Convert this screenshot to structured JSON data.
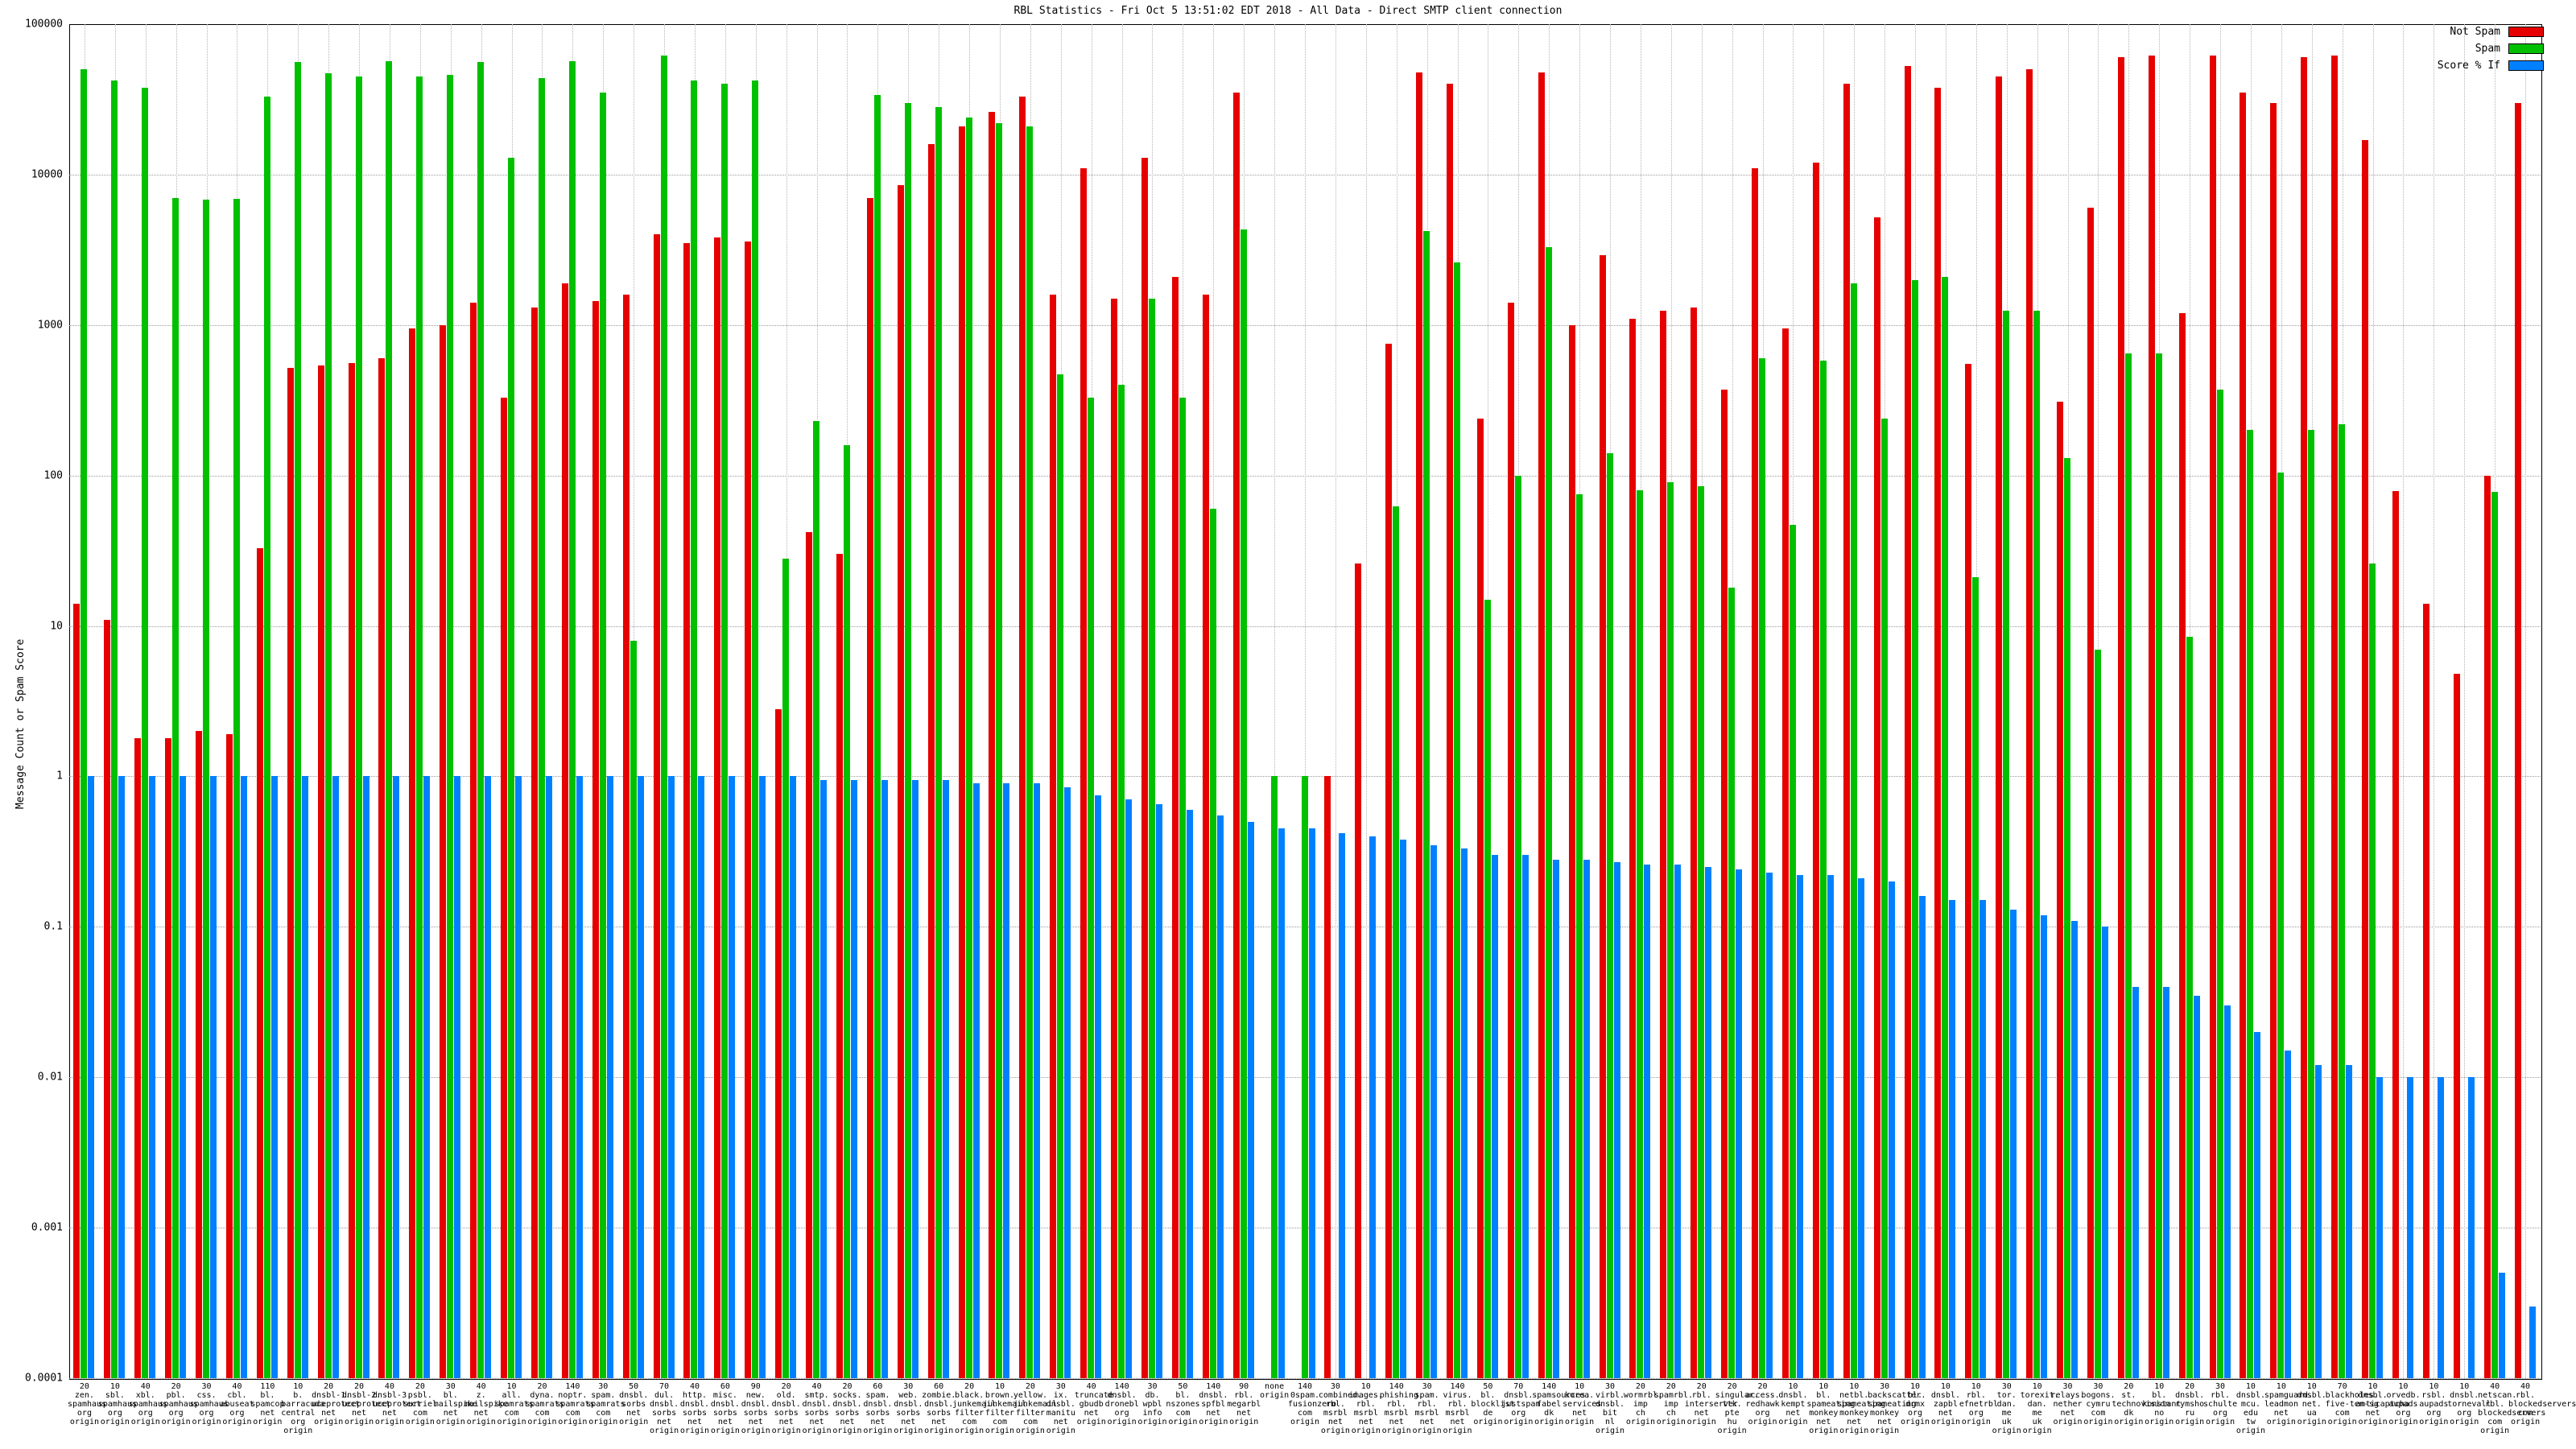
{
  "chart_data": {
    "type": "bar",
    "title": "RBL Statistics - Fri Oct  5 13:51:02 EDT 2018 - All Data - Direct SMTP client connection",
    "ylabel": "Message Count or Spam Score",
    "y_scale": "log",
    "ylim": [
      0.0001,
      100000
    ],
    "y_ticks": [
      "100000",
      "10000",
      "1000",
      "100",
      "10",
      "1",
      "0.1",
      "0.01",
      "0.001",
      "0.0001"
    ],
    "grid": "dotted",
    "legend_position": "top-right",
    "legend": [
      {
        "name": "Not Spam",
        "color": "#e60000"
      },
      {
        "name": "Spam",
        "color": "#00c000"
      },
      {
        "name": "Score % If",
        "color": "#0080ff"
      }
    ],
    "series_keys": [
      "not_spam",
      "spam",
      "score"
    ],
    "groups": [
      {
        "label": [
          "20",
          "zen.",
          "spamhaus",
          "org",
          "origin"
        ],
        "not_spam": 14,
        "spam": 50000,
        "score": 1.0
      },
      {
        "label": [
          "10",
          "sbl.",
          "spamhaus",
          "org",
          "origin"
        ],
        "not_spam": 11,
        "spam": 42000,
        "score": 1.0
      },
      {
        "label": [
          "40",
          "xbl.",
          "spamhaus",
          "org",
          "origin"
        ],
        "not_spam": 1.8,
        "spam": 38000,
        "score": 1.0
      },
      {
        "label": [
          "20",
          "pbl.",
          "spamhaus",
          "org",
          "origin"
        ],
        "not_spam": 1.8,
        "spam": 7000,
        "score": 1.0
      },
      {
        "label": [
          "30",
          "css.",
          "spamhaus",
          "org",
          "origin"
        ],
        "not_spam": 2.0,
        "spam": 6800,
        "score": 1.0
      },
      {
        "label": [
          "40",
          "cbl.",
          "abuseat",
          "org",
          "origin"
        ],
        "not_spam": 1.9,
        "spam": 6900,
        "score": 1.0
      },
      {
        "label": [
          "110",
          "bl.",
          "spamcop",
          "net",
          "origin"
        ],
        "not_spam": 33,
        "spam": 33000,
        "score": 1.0
      },
      {
        "label": [
          "10",
          "b.",
          "barracuda",
          "central",
          "org",
          "origin"
        ],
        "not_spam": 520,
        "spam": 56000,
        "score": 1.0
      },
      {
        "label": [
          "20",
          "dnsbl-1.",
          "uceprotect",
          "net",
          "origin"
        ],
        "not_spam": 540,
        "spam": 47000,
        "score": 1.0
      },
      {
        "label": [
          "20",
          "dnsbl-2.",
          "uceprotect",
          "net",
          "origin"
        ],
        "not_spam": 560,
        "spam": 45000,
        "score": 1.0
      },
      {
        "label": [
          "40",
          "dnsbl-3.",
          "uceprotect",
          "net",
          "origin"
        ],
        "not_spam": 600,
        "spam": 57000,
        "score": 1.0
      },
      {
        "label": [
          "20",
          "psbl.",
          "surriel",
          "com",
          "origin"
        ],
        "not_spam": 950,
        "spam": 45000,
        "score": 1.0
      },
      {
        "label": [
          "30",
          "bl.",
          "mailspike",
          "net",
          "origin"
        ],
        "not_spam": 1000,
        "spam": 46000,
        "score": 1.0
      },
      {
        "label": [
          "40",
          "z.",
          "mailspike",
          "net",
          "origin"
        ],
        "not_spam": 1400,
        "spam": 56000,
        "score": 1.0
      },
      {
        "label": [
          "10",
          "all.",
          "spamrats",
          "com",
          "origin"
        ],
        "not_spam": 330,
        "spam": 13000,
        "score": 1.0
      },
      {
        "label": [
          "20",
          "dyna.",
          "spamrats",
          "com",
          "origin"
        ],
        "not_spam": 1300,
        "spam": 44000,
        "score": 1.0
      },
      {
        "label": [
          "140",
          "noptr.",
          "spamrats",
          "com",
          "origin"
        ],
        "not_spam": 1900,
        "spam": 57000,
        "score": 1.0
      },
      {
        "label": [
          "30",
          "spam.",
          "spamrats",
          "com",
          "origin"
        ],
        "not_spam": 1450,
        "spam": 35000,
        "score": 1.0
      },
      {
        "label": [
          "50",
          "dnsbl.",
          "sorbs",
          "net",
          "origin"
        ],
        "not_spam": 1600,
        "spam": 8,
        "score": 1.0
      },
      {
        "label": [
          "70",
          "dul.",
          "dnsbl.",
          "sorbs",
          "net",
          "origin"
        ],
        "not_spam": 4000,
        "spam": 62000,
        "score": 1.0
      },
      {
        "label": [
          "40",
          "http.",
          "dnsbl.",
          "sorbs",
          "net",
          "origin"
        ],
        "not_spam": 3500,
        "spam": 42000,
        "score": 1.0
      },
      {
        "label": [
          "60",
          "misc.",
          "dnsbl.",
          "sorbs",
          "net",
          "origin"
        ],
        "not_spam": 3800,
        "spam": 40000,
        "score": 1.0
      },
      {
        "label": [
          "90",
          "new.",
          "dnsbl.",
          "sorbs",
          "net",
          "origin"
        ],
        "not_spam": 3600,
        "spam": 42000,
        "score": 1.0
      },
      {
        "label": [
          "20",
          "old.",
          "dnsbl.",
          "sorbs",
          "net",
          "origin"
        ],
        "not_spam": 2.8,
        "spam": 28,
        "score": 1.0
      },
      {
        "label": [
          "40",
          "smtp.",
          "dnsbl.",
          "sorbs",
          "net",
          "origin"
        ],
        "not_spam": 42,
        "spam": 230,
        "score": 0.95
      },
      {
        "label": [
          "20",
          "socks.",
          "dnsbl.",
          "sorbs",
          "net",
          "origin"
        ],
        "not_spam": 30,
        "spam": 160,
        "score": 0.95
      },
      {
        "label": [
          "60",
          "spam.",
          "dnsbl.",
          "sorbs",
          "net",
          "origin"
        ],
        "not_spam": 7000,
        "spam": 34000,
        "score": 0.95
      },
      {
        "label": [
          "30",
          "web.",
          "dnsbl.",
          "sorbs",
          "net",
          "origin"
        ],
        "not_spam": 8500,
        "spam": 30000,
        "score": 0.95
      },
      {
        "label": [
          "60",
          "zombie.",
          "dnsbl.",
          "sorbs",
          "net",
          "origin"
        ],
        "not_spam": 16000,
        "spam": 28000,
        "score": 0.95
      },
      {
        "label": [
          "20",
          "black.",
          "junkemail",
          "filter",
          "com",
          "origin"
        ],
        "not_spam": 21000,
        "spam": 24000,
        "score": 0.9
      },
      {
        "label": [
          "10",
          "brown.",
          "junkemail",
          "filter",
          "com",
          "origin"
        ],
        "not_spam": 26000,
        "spam": 22000,
        "score": 0.9
      },
      {
        "label": [
          "20",
          "yellow.",
          "junkemail",
          "filter",
          "com",
          "origin"
        ],
        "not_spam": 33000,
        "spam": 21000,
        "score": 0.9
      },
      {
        "label": [
          "30",
          "ix.",
          "dnsbl.",
          "manitu",
          "net",
          "origin"
        ],
        "not_spam": 1600,
        "spam": 470,
        "score": 0.85
      },
      {
        "label": [
          "40",
          "truncate.",
          "gbudb",
          "net",
          "origin"
        ],
        "not_spam": 11000,
        "spam": 330,
        "score": 0.75
      },
      {
        "label": [
          "140",
          "dnsbl.",
          "dronebl",
          "org",
          "origin"
        ],
        "not_spam": 1500,
        "spam": 400,
        "score": 0.7
      },
      {
        "label": [
          "30",
          "db.",
          "wpbl",
          "info",
          "origin"
        ],
        "not_spam": 13000,
        "spam": 1500,
        "score": 0.65
      },
      {
        "label": [
          "50",
          "bl.",
          "nszones",
          "com",
          "origin"
        ],
        "not_spam": 2100,
        "spam": 330,
        "score": 0.6
      },
      {
        "label": [
          "140",
          "dnsbl.",
          "spfbl",
          "net",
          "origin"
        ],
        "not_spam": 1600,
        "spam": 60,
        "score": 0.55
      },
      {
        "label": [
          "90",
          "rbl.",
          "megarbl",
          "net",
          "origin"
        ],
        "not_spam": 35000,
        "spam": 4300,
        "score": 0.5
      },
      {
        "label": [
          "none",
          "origin"
        ],
        "not_spam": 0,
        "spam": 1.0,
        "score": 0.45
      },
      {
        "label": [
          "140",
          "0spam.",
          "fusionzero",
          "com",
          "origin"
        ],
        "not_spam": 0,
        "spam": 1.0,
        "score": 0.45
      },
      {
        "label": [
          "30",
          "combined.",
          "rbl.",
          "msrbl",
          "net",
          "origin"
        ],
        "not_spam": 1.0,
        "spam": 0,
        "score": 0.42
      },
      {
        "label": [
          "10",
          "images.",
          "rbl.",
          "msrbl",
          "net",
          "origin"
        ],
        "not_spam": 26,
        "spam": 0,
        "score": 0.4
      },
      {
        "label": [
          "140",
          "phishing.",
          "rbl.",
          "msrbl",
          "net",
          "origin"
        ],
        "not_spam": 750,
        "spam": 62,
        "score": 0.38
      },
      {
        "label": [
          "30",
          "spam.",
          "rbl.",
          "msrbl",
          "net",
          "origin"
        ],
        "not_spam": 48000,
        "spam": 4200,
        "score": 0.35
      },
      {
        "label": [
          "140",
          "virus.",
          "rbl.",
          "msrbl",
          "net",
          "origin"
        ],
        "not_spam": 40000,
        "spam": 2600,
        "score": 0.33
      },
      {
        "label": [
          "50",
          "bl.",
          "blocklist",
          "de",
          "origin"
        ],
        "not_spam": 240,
        "spam": 15,
        "score": 0.3
      },
      {
        "label": [
          "70",
          "dnsbl.",
          "justspam",
          "org",
          "origin"
        ],
        "not_spam": 1400,
        "spam": 100,
        "score": 0.3
      },
      {
        "label": [
          "140",
          "spamsources.",
          "fabel",
          "dk",
          "origin"
        ],
        "not_spam": 48000,
        "spam": 3300,
        "score": 0.28
      },
      {
        "label": [
          "10",
          "korea.",
          "services",
          "net",
          "origin"
        ],
        "not_spam": 1000,
        "spam": 75,
        "score": 0.28
      },
      {
        "label": [
          "30",
          "virbl.",
          "dnsbl.",
          "bit",
          "nl",
          "origin"
        ],
        "not_spam": 2900,
        "spam": 140,
        "score": 0.27
      },
      {
        "label": [
          "20",
          "wormrbl.",
          "imp",
          "ch",
          "origin"
        ],
        "not_spam": 1100,
        "spam": 80,
        "score": 0.26
      },
      {
        "label": [
          "20",
          "spamrbl.",
          "imp",
          "ch",
          "origin"
        ],
        "not_spam": 1250,
        "spam": 90,
        "score": 0.26
      },
      {
        "label": [
          "20",
          "rbl.",
          "interserver",
          "net",
          "origin"
        ],
        "not_spam": 1300,
        "spam": 85,
        "score": 0.25
      },
      {
        "label": [
          "20",
          "singular.",
          "ttk.",
          "pte",
          "hu",
          "origin"
        ],
        "not_spam": 370,
        "spam": 18,
        "score": 0.24
      },
      {
        "label": [
          "20",
          "access.",
          "redhawk",
          "org",
          "origin"
        ],
        "not_spam": 11000,
        "spam": 600,
        "score": 0.23
      },
      {
        "label": [
          "10",
          "dnsbl.",
          "kempt",
          "net",
          "origin"
        ],
        "not_spam": 950,
        "spam": 47,
        "score": 0.22
      },
      {
        "label": [
          "10",
          "bl.",
          "spameating",
          "monkey",
          "net",
          "origin"
        ],
        "not_spam": 12000,
        "spam": 580,
        "score": 0.22
      },
      {
        "label": [
          "10",
          "netbl.",
          "spameating",
          "monkey",
          "net",
          "origin"
        ],
        "not_spam": 40000,
        "spam": 1900,
        "score": 0.21
      },
      {
        "label": [
          "30",
          "backscatter.",
          "spameating",
          "monkey",
          "net",
          "origin"
        ],
        "not_spam": 5200,
        "spam": 240,
        "score": 0.2
      },
      {
        "label": [
          "10",
          "bl.",
          "drmx",
          "org",
          "origin"
        ],
        "not_spam": 53000,
        "spam": 2000,
        "score": 0.16
      },
      {
        "label": [
          "10",
          "dnsbl.",
          "zapbl",
          "net",
          "origin"
        ],
        "not_spam": 38000,
        "spam": 2100,
        "score": 0.15
      },
      {
        "label": [
          "10",
          "rbl.",
          "efnetrbl",
          "org",
          "origin"
        ],
        "not_spam": 550,
        "spam": 21,
        "score": 0.15
      },
      {
        "label": [
          "30",
          "tor.",
          "dan.",
          "me",
          "uk",
          "origin"
        ],
        "not_spam": 45000,
        "spam": 1250,
        "score": 0.13
      },
      {
        "label": [
          "10",
          "torexit.",
          "dan.",
          "me",
          "uk",
          "origin"
        ],
        "not_spam": 50000,
        "spam": 1250,
        "score": 0.12
      },
      {
        "label": [
          "30",
          "relays.",
          "nether",
          "net",
          "origin"
        ],
        "not_spam": 310,
        "spam": 130,
        "score": 0.11
      },
      {
        "label": [
          "30",
          "bogons.",
          "cymru",
          "com",
          "origin"
        ],
        "not_spam": 6000,
        "spam": 7,
        "score": 0.1
      },
      {
        "label": [
          "20",
          "st.",
          "technovision",
          "dk",
          "origin"
        ],
        "not_spam": 60000,
        "spam": 650,
        "score": 0.04
      },
      {
        "label": [
          "10",
          "bl.",
          "konstant",
          "no",
          "origin"
        ],
        "not_spam": 62000,
        "spam": 650,
        "score": 0.04
      },
      {
        "label": [
          "20",
          "dnsbl.",
          "rymsho",
          "ru",
          "origin"
        ],
        "not_spam": 1200,
        "spam": 8.5,
        "score": 0.035
      },
      {
        "label": [
          "30",
          "rbl.",
          "schulte",
          "org",
          "origin"
        ],
        "not_spam": 62000,
        "spam": 370,
        "score": 0.03
      },
      {
        "label": [
          "10",
          "dnsbl.",
          "mcu.",
          "edu",
          "tw",
          "origin"
        ],
        "not_spam": 35000,
        "spam": 200,
        "score": 0.02
      },
      {
        "label": [
          "10",
          "spamguard.",
          "leadmon",
          "net",
          "origin"
        ],
        "not_spam": 30000,
        "spam": 105,
        "score": 0.015
      },
      {
        "label": [
          "10",
          "dnsbl.",
          "net.",
          "ua",
          "origin"
        ],
        "not_spam": 60000,
        "spam": 200,
        "score": 0.012
      },
      {
        "label": [
          "70",
          "blackholes.",
          "five-ten-sg",
          "com",
          "origin"
        ],
        "not_spam": 62000,
        "spam": 220,
        "score": 0.012
      },
      {
        "label": [
          "10",
          "dnsbl.",
          "anticaptcha",
          "net",
          "origin"
        ],
        "not_spam": 17000,
        "spam": 26,
        "score": 0.01
      },
      {
        "label": [
          "10",
          "orvedb.",
          "aupads",
          "org",
          "origin"
        ],
        "not_spam": 79,
        "spam": 0,
        "score": 0.01
      },
      {
        "label": [
          "10",
          "rsbl.",
          "aupads",
          "org",
          "origin"
        ],
        "not_spam": 14,
        "spam": 0,
        "score": 0.01
      },
      {
        "label": [
          "10",
          "dnsbl.",
          "tornevall",
          "org",
          "origin"
        ],
        "not_spam": 4.8,
        "spam": 0,
        "score": 0.01
      },
      {
        "label": [
          "40",
          "netscan.",
          "rbl.",
          "blockedservers",
          "com",
          "origin"
        ],
        "not_spam": 100,
        "spam": 78,
        "score": 0.0005
      },
      {
        "label": [
          "40",
          "rbl.",
          "blockedservers",
          "com",
          "origin"
        ],
        "not_spam": 30000,
        "spam": 0,
        "score": 0.0003
      }
    ]
  }
}
